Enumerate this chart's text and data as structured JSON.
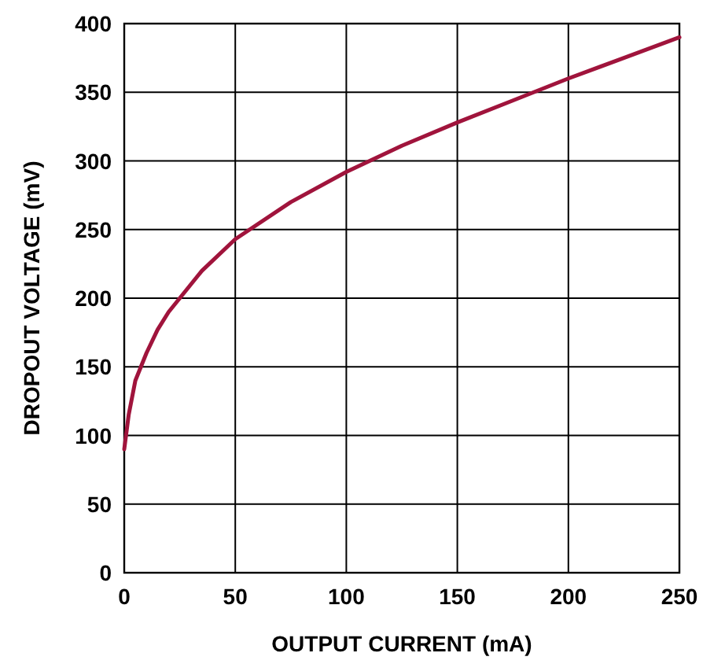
{
  "chart_data": {
    "type": "line",
    "xlabel": "OUTPUT CURRENT (mA)",
    "ylabel": "DROPOUT VOLTAGE (mV)",
    "x": [
      0,
      2,
      5,
      10,
      15,
      20,
      25,
      35,
      50,
      75,
      100,
      125,
      150,
      175,
      200,
      225,
      250
    ],
    "series": [
      {
        "color": "#a0143c",
        "values": [
          90,
          115,
          140,
          160,
          177,
          190,
          200,
          220,
          243,
          270,
          292,
          311,
          328,
          344,
          360,
          375,
          390
        ]
      }
    ],
    "xlim": [
      0,
      250
    ],
    "xticks": [
      0,
      50,
      100,
      150,
      200,
      250
    ],
    "ylim": [
      0,
      400
    ],
    "yticks": [
      0,
      50,
      100,
      150,
      200,
      250,
      300,
      350,
      400
    ],
    "grid": true,
    "marker": "none",
    "line_style": "solid"
  }
}
